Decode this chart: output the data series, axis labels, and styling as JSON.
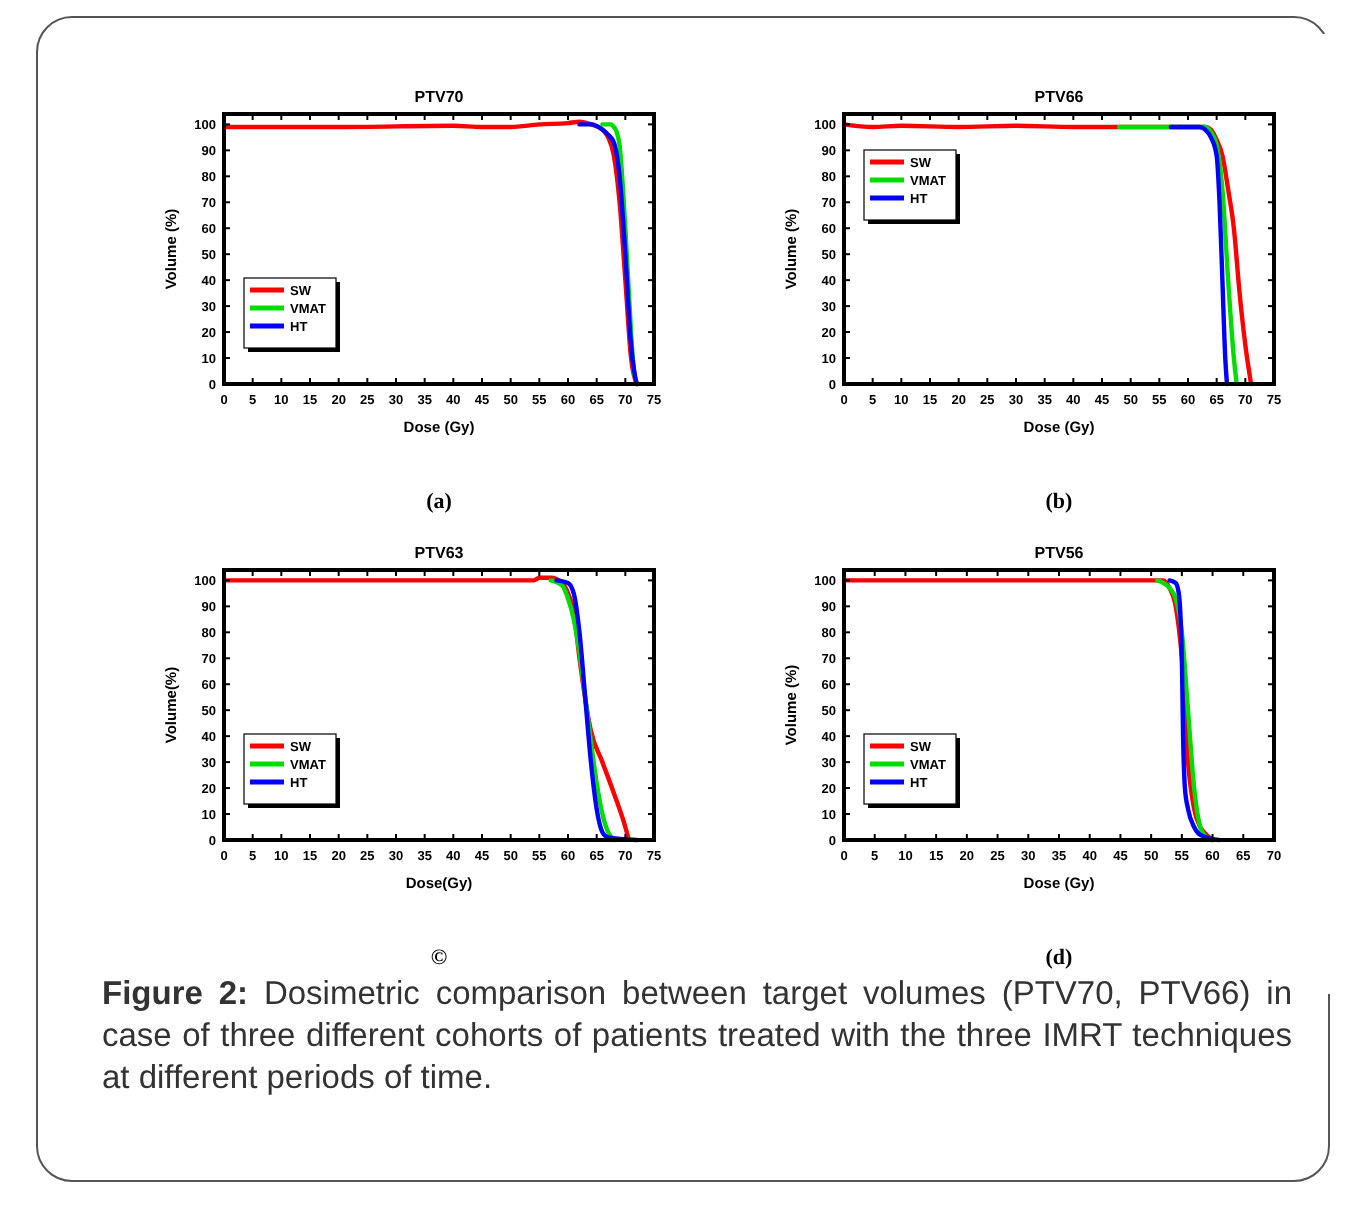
{
  "chart_data": [
    {
      "type": "line",
      "title": "PTV70",
      "xlabel": "Dose (Gy)",
      "ylabel": "Volume (%)",
      "annotations": [
        "(a)"
      ],
      "xlim": [
        0,
        75
      ],
      "xticks": [
        0,
        5,
        10,
        15,
        20,
        25,
        30,
        35,
        40,
        45,
        50,
        55,
        60,
        65,
        70,
        75
      ],
      "ylim": [
        0,
        104
      ],
      "yticks": [
        0,
        10,
        20,
        30,
        40,
        50,
        60,
        70,
        80,
        90,
        100
      ],
      "legend": "bottom left",
      "grid": false,
      "series": [
        {
          "name": "SW",
          "color": "#ff0000",
          "x": [
            0,
            20,
            40,
            45,
            50,
            55,
            60,
            62,
            64,
            66,
            67,
            68,
            69,
            70,
            71,
            72
          ],
          "values": [
            99,
            99,
            99.5,
            99,
            99,
            100,
            100.5,
            101,
            100,
            98,
            95,
            88,
            70,
            40,
            10,
            0
          ]
        },
        {
          "name": "VMAT",
          "color": "#00dd00",
          "x": [
            66,
            67.5,
            68,
            68.5,
            69,
            70,
            71,
            71.5,
            72
          ],
          "values": [
            100,
            100,
            99,
            97,
            92,
            60,
            20,
            5,
            0
          ]
        },
        {
          "name": "HT",
          "color": "#0000ff",
          "x": [
            62,
            64,
            66,
            67,
            68,
            69,
            70,
            71,
            71.7,
            72
          ],
          "values": [
            100,
            100,
            98,
            96,
            93,
            80,
            50,
            15,
            3,
            0
          ]
        }
      ]
    },
    {
      "type": "line",
      "title": "PTV66",
      "xlabel": "Dose (Gy)",
      "ylabel": "Volume (%)",
      "annotations": [
        "(b)"
      ],
      "xlim": [
        0,
        75
      ],
      "xticks": [
        0,
        5,
        10,
        15,
        20,
        25,
        30,
        35,
        40,
        45,
        50,
        55,
        60,
        65,
        70,
        75
      ],
      "ylim": [
        0,
        104
      ],
      "yticks": [
        0,
        10,
        20,
        30,
        40,
        50,
        60,
        70,
        80,
        90,
        100
      ],
      "legend": "top left",
      "grid": false,
      "series": [
        {
          "name": "SW",
          "color": "#ff0000",
          "x": [
            0,
            5,
            10,
            20,
            30,
            40,
            48,
            63,
            64,
            65,
            66,
            67,
            68,
            69,
            70,
            71
          ],
          "values": [
            100,
            99,
            99.5,
            99,
            99.5,
            99,
            99,
            99,
            98,
            94,
            88,
            75,
            60,
            35,
            15,
            0
          ]
        },
        {
          "name": "VMAT",
          "color": "#00dd00",
          "x": [
            48,
            55,
            62,
            63,
            64,
            65,
            66,
            67,
            68,
            68.5
          ],
          "values": [
            99,
            99,
            99,
            99,
            97,
            92,
            75,
            40,
            10,
            0
          ]
        },
        {
          "name": "HT",
          "color": "#0000ff",
          "x": [
            57,
            62,
            63,
            64,
            65,
            65.5,
            66,
            66.5,
            66.8
          ],
          "values": [
            99,
            99,
            98,
            95,
            88,
            70,
            40,
            10,
            0
          ]
        }
      ]
    },
    {
      "type": "line",
      "title": "PTV63",
      "xlabel": "Dose(Gy)",
      "ylabel": "Volume(%)",
      "annotations": [
        "©"
      ],
      "xlim": [
        0,
        75
      ],
      "xticks": [
        0,
        5,
        10,
        15,
        20,
        25,
        30,
        35,
        40,
        45,
        50,
        55,
        60,
        65,
        70,
        75
      ],
      "ylim": [
        0,
        104
      ],
      "yticks": [
        0,
        10,
        20,
        30,
        40,
        50,
        60,
        70,
        80,
        90,
        100
      ],
      "legend": "bottom left",
      "grid": false,
      "series": [
        {
          "name": "SW",
          "color": "#ff0000",
          "x": [
            0,
            20,
            40,
            54,
            55,
            57,
            59,
            60,
            61,
            62,
            64,
            66,
            68,
            70,
            70.5
          ],
          "values": [
            100,
            100,
            100,
            100,
            101,
            101,
            99,
            95,
            88,
            70,
            42,
            30,
            18,
            5,
            1
          ]
        },
        {
          "name": "VMAT",
          "color": "#00dd00",
          "x": [
            57,
            59,
            60,
            61,
            62,
            63,
            64,
            65,
            66,
            67,
            68
          ],
          "values": [
            100,
            98,
            93,
            85,
            72,
            55,
            38,
            22,
            10,
            3,
            0
          ]
        },
        {
          "name": "HT",
          "color": "#0000ff",
          "x": [
            58,
            60,
            61,
            62,
            63,
            64,
            65,
            66,
            67,
            72
          ],
          "values": [
            100,
            99,
            95,
            80,
            55,
            30,
            12,
            3,
            1,
            0
          ]
        }
      ]
    },
    {
      "type": "line",
      "title": "PTV56",
      "xlabel": "Dose (Gy)",
      "ylabel": "Volume (%)",
      "annotations": [
        "(d)",
        "Figure 2: Dosimetric comparison between target volumes (PTV70, PTV66) in case of three different cohorts of patients treated with the three IMRT techniques at different periods of time."
      ],
      "xlim": [
        0,
        70
      ],
      "xticks": [
        0,
        5,
        10,
        15,
        20,
        25,
        30,
        35,
        40,
        45,
        50,
        55,
        60,
        65,
        70
      ],
      "ylim": [
        0,
        104
      ],
      "yticks": [
        0,
        10,
        20,
        30,
        40,
        50,
        60,
        70,
        80,
        90,
        100
      ],
      "legend": "bottom left",
      "grid": false,
      "series": [
        {
          "name": "SW",
          "color": "#ff0000",
          "x": [
            0,
            20,
            40,
            52,
            53,
            54,
            55,
            56,
            57,
            58,
            59,
            60
          ],
          "values": [
            100,
            100,
            100,
            100,
            97,
            90,
            70,
            30,
            12,
            5,
            2,
            0
          ]
        },
        {
          "name": "VMAT",
          "color": "#00dd00",
          "x": [
            51,
            53,
            54,
            55,
            56,
            57,
            58,
            59,
            60
          ],
          "values": [
            100,
            97,
            93,
            80,
            50,
            20,
            5,
            1,
            0
          ]
        },
        {
          "name": "HT",
          "color": "#0000ff",
          "x": [
            53,
            54,
            54.5,
            55,
            55.2,
            55.5,
            56,
            57,
            58,
            61
          ],
          "values": [
            100,
            99,
            95,
            70,
            40,
            20,
            12,
            5,
            2,
            0
          ]
        }
      ]
    }
  ]
}
